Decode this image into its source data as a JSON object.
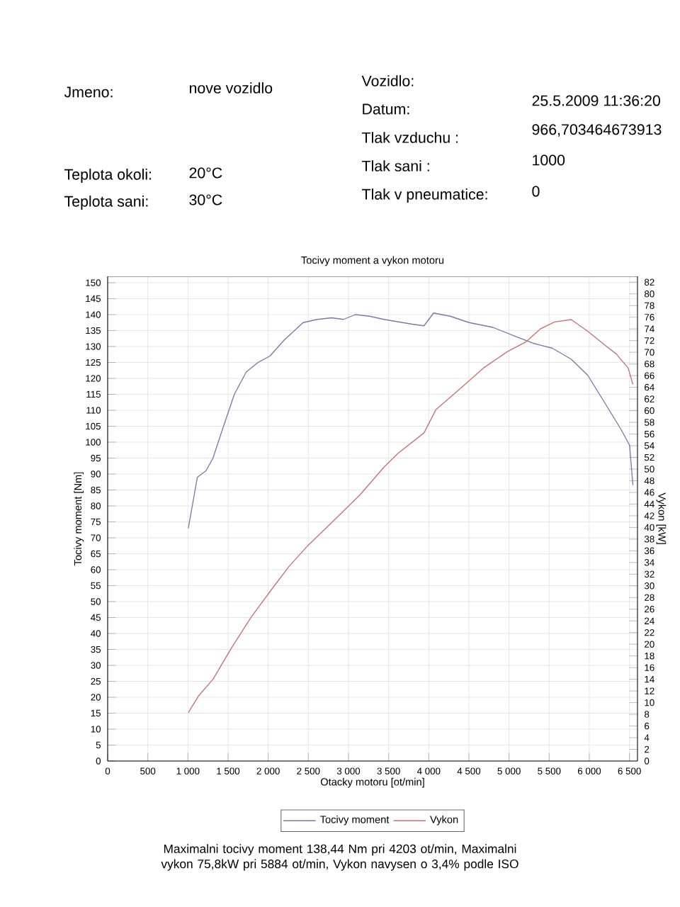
{
  "chart_data": {
    "type": "line",
    "title": "Tocivy moment a vykon motoru",
    "xlabel": "Otacky motoru [ot/min]",
    "ylabel": "Tocivy moment [Nm]",
    "y2label": "Vykon [kW]",
    "annotations": [
      "Jmeno:",
      "nove vozidlo",
      "Teplota okoli:",
      "20°C",
      "Teplota sani:",
      "30°C",
      "Vozidlo:",
      "Datum:",
      "25.5.2009 11:36:20",
      "Tlak vzduchu :",
      "966,703464673913",
      "Tlak sani :",
      "1000",
      "Tlak v pneumatice:",
      "0",
      "Maximalni tocivy moment 138,44 Nm pri 4203 ot/min,  Maximalni vykon 75,8kW pri 5884 ot/min,  Vykon navysen o 3,4% podle ISO"
    ],
    "series": [
      {
        "name": "Tocivy moment",
        "color": "#7878a8",
        "x": [
          1005,
          1117,
          1224,
          1312,
          1430,
          1578,
          1726,
          1873,
          2021,
          2198,
          2435,
          2612,
          2789,
          2937,
          3085,
          3262,
          3440,
          3558,
          3794,
          3941,
          4060,
          4267,
          4503,
          4799,
          5094,
          5301,
          5537,
          5775,
          5980,
          6188,
          6395,
          6502,
          6543
        ],
        "values": [
          73,
          89,
          91,
          95,
          104,
          115,
          122,
          125,
          127,
          132,
          137.5,
          138.5,
          139,
          138.5,
          140,
          139.5,
          138.5,
          138,
          137,
          136.5,
          140.5,
          139.5,
          137.5,
          136,
          133,
          131,
          129.5,
          126,
          121,
          112.5,
          104,
          99,
          86.5
        ]
      },
      {
        "name": "Vykon",
        "color": "#c87070",
        "axis": "y2",
        "x": [
          1005,
          1135,
          1312,
          1548,
          1785,
          2021,
          2257,
          2494,
          2789,
          3144,
          3440,
          3617,
          3941,
          4090,
          4386,
          4681,
          4977,
          5212,
          5390,
          5567,
          5775,
          5980,
          6188,
          6336,
          6484,
          6543
        ],
        "values": [
          8.3,
          11.2,
          14,
          19.5,
          24.6,
          29,
          33.3,
          36.9,
          40.8,
          45.6,
          50.3,
          52.7,
          56.2,
          60.2,
          63.7,
          67.3,
          70.1,
          71.8,
          74,
          75.2,
          75.6,
          73.6,
          71.3,
          69.7,
          67.3,
          64.5
        ]
      }
    ],
    "xlim": [
      0,
      6600
    ],
    "xticks": [
      0,
      500,
      {
        "value": 1000,
        "label": "1 000"
      },
      {
        "value": 1500,
        "label": "1 500"
      },
      {
        "value": 2000,
        "label": "2 000"
      },
      {
        "value": 2500,
        "label": "2 500"
      },
      {
        "value": 3000,
        "label": "3 000"
      },
      {
        "value": 3500,
        "label": "3 500"
      },
      {
        "value": 4000,
        "label": "4 000"
      },
      {
        "value": 4500,
        "label": "4 500"
      },
      {
        "value": 5000,
        "label": "5 000"
      },
      {
        "value": 5500,
        "label": "5 500"
      },
      {
        "value": 6000,
        "label": "6 000"
      },
      {
        "value": 6500,
        "label": "6 500"
      }
    ],
    "ylim": [
      0,
      152
    ],
    "yticks": [
      0,
      5,
      10,
      15,
      20,
      25,
      30,
      35,
      40,
      45,
      50,
      55,
      60,
      65,
      70,
      75,
      80,
      85,
      90,
      95,
      100,
      105,
      110,
      115,
      120,
      125,
      130,
      135,
      140,
      145,
      150
    ],
    "y2lim": [
      0,
      83
    ],
    "y2ticks": [
      0,
      2,
      4,
      6,
      8,
      10,
      12,
      14,
      16,
      18,
      20,
      22,
      24,
      26,
      28,
      30,
      32,
      34,
      36,
      38,
      40,
      42,
      44,
      46,
      48,
      50,
      52,
      54,
      56,
      58,
      60,
      62,
      64,
      66,
      68,
      70,
      72,
      74,
      76,
      78,
      80,
      82
    ],
    "grid": true,
    "legend": "bottom"
  }
}
